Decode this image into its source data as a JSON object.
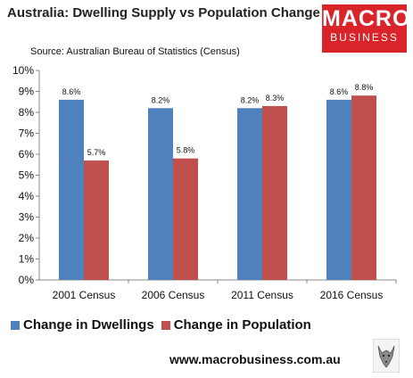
{
  "header": {
    "title": "Australia: Dwelling Supply vs Population Change",
    "source": "Source: Australian Bureau of Statistics (Census)"
  },
  "logo": {
    "line1": "MACRO",
    "line2": "BUSINESS",
    "color": "#d9252a"
  },
  "footer": {
    "website": "www.macrobusiness.com.au",
    "mascot_icon": "wolf-icon"
  },
  "chart_data": {
    "type": "bar",
    "categories": [
      "2001 Census",
      "2006 Census",
      "2011 Census",
      "2016 Census"
    ],
    "series": [
      {
        "name": "Change in Dwellings",
        "values": [
          8.6,
          8.2,
          8.2,
          8.6
        ],
        "labels": [
          "8.6%",
          "8.2%",
          "8.2%",
          "8.6%"
        ],
        "color": "#4f81bd"
      },
      {
        "name": "Change in Population",
        "values": [
          5.7,
          5.8,
          8.3,
          8.8
        ],
        "labels": [
          "5.7%",
          "5.8%",
          "8.3%",
          "8.8%"
        ],
        "color": "#c0504d"
      }
    ],
    "ylim": [
      0,
      10
    ],
    "yticks": [
      "0%",
      "1%",
      "2%",
      "3%",
      "4%",
      "5%",
      "6%",
      "7%",
      "8%",
      "9%",
      "10%"
    ],
    "grid": false,
    "legend_position": "bottom"
  }
}
